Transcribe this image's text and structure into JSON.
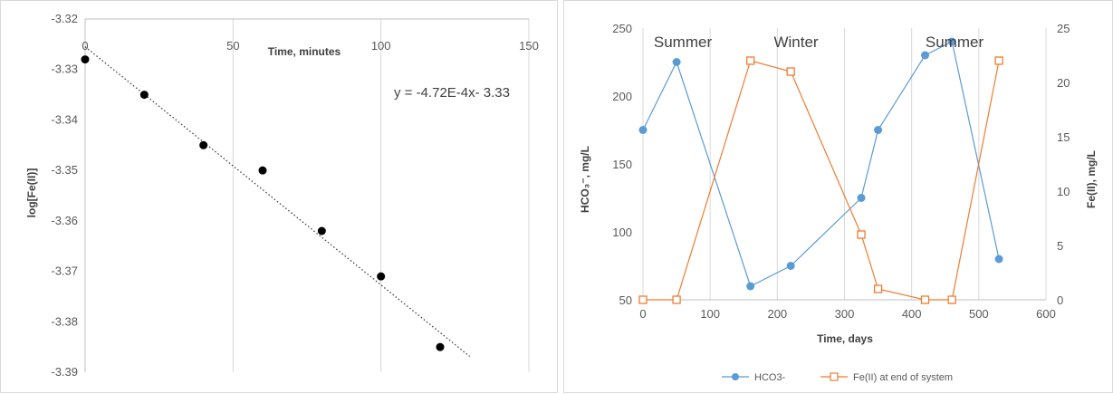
{
  "colors": {
    "hco3": "#5B9BD5",
    "fe": "#ED7D31",
    "grid": "#d9d9d9",
    "points": "#000000"
  },
  "chart_data": [
    {
      "type": "scatter",
      "xlabel": "Time, minutes",
      "ylabel": "log[Fe(II)]",
      "xlim": [
        0,
        150
      ],
      "ylim": [
        -3.39,
        -3.32
      ],
      "x_ticks": [
        0,
        50,
        100,
        150
      ],
      "y_ticks": [
        -3.32,
        -3.33,
        -3.34,
        -3.35,
        -3.36,
        -3.37,
        -3.38,
        -3.39
      ],
      "x_axis_position": "top",
      "grid": "vertical",
      "series": [
        {
          "x": [
            0,
            20,
            40,
            60,
            80,
            100,
            120
          ],
          "y": [
            -3.328,
            -3.335,
            -3.345,
            -3.35,
            -3.362,
            -3.371,
            -3.385
          ]
        }
      ],
      "trendline": {
        "slope": -0.000472,
        "intercept": -3.3255,
        "x_range": [
          0,
          130
        ],
        "style": "dotted"
      },
      "annotation": "y = -4.72E-4x- 3.33"
    },
    {
      "type": "line",
      "xlabel": "Time, days",
      "ylabel": "HCO₃⁻, mg/L",
      "y2label": "Fe(II), mg/L",
      "xlim": [
        0,
        600
      ],
      "ylim": [
        50,
        250
      ],
      "y2lim": [
        0,
        25
      ],
      "x_ticks": [
        0,
        100,
        200,
        300,
        400,
        500,
        600
      ],
      "y_ticks": [
        50,
        100,
        150,
        200,
        250
      ],
      "y2_ticks": [
        0,
        5,
        10,
        15,
        20,
        25
      ],
      "grid": "vertical",
      "legend_position": "bottom",
      "annotations": [
        "Summer",
        "Winter",
        "Summer"
      ],
      "series": [
        {
          "name": "HCO3-",
          "axis": "left",
          "marker": "circle",
          "x": [
            0,
            50,
            160,
            220,
            325,
            350,
            420,
            460,
            530
          ],
          "y": [
            175,
            225,
            60,
            75,
            125,
            175,
            230,
            240,
            80
          ]
        },
        {
          "name": "Fe(II) at end of system",
          "axis": "right",
          "marker": "square",
          "x": [
            0,
            50,
            160,
            220,
            325,
            350,
            420,
            460,
            530
          ],
          "y": [
            0,
            0,
            22,
            21,
            6,
            1,
            0,
            0,
            22
          ]
        }
      ]
    }
  ]
}
